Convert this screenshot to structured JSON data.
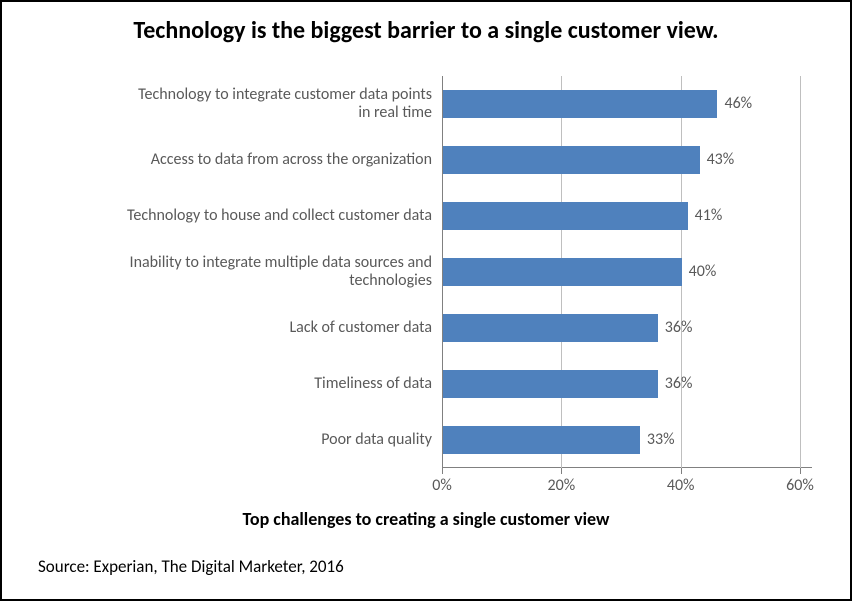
{
  "chart": {
    "type": "bar-horizontal",
    "title": "Technology is the biggest barrier to a single customer view.",
    "x_title": "Top challenges to creating a single customer view",
    "source": "Source: Experian, The Digital Marketer, 2016",
    "bar_color": "#4f81bd",
    "grid_color": "#bfbfbf",
    "axis_color": "#808080",
    "text_color": "#595959",
    "background": "#ffffff",
    "title_fontsize": 24,
    "label_fontsize": 16,
    "x_title_fontsize": 18,
    "xmin": 0,
    "xmax": 60,
    "xtick_step": 20,
    "ticks": [
      {
        "v": 0,
        "label": "0%"
      },
      {
        "v": 20,
        "label": "20%"
      },
      {
        "v": 40,
        "label": "40%"
      },
      {
        "v": 60,
        "label": "60%"
      }
    ],
    "items": [
      {
        "label": "Technology to integrate customer data points\nin real time",
        "value": 46,
        "value_label": "46%"
      },
      {
        "label": "Access to data from across the organization",
        "value": 43,
        "value_label": "43%"
      },
      {
        "label": "Technology to house and collect customer data",
        "value": 41,
        "value_label": "41%"
      },
      {
        "label": "Inability to integrate multiple data sources and\ntechnologies",
        "value": 40,
        "value_label": "40%"
      },
      {
        "label": "Lack of customer data",
        "value": 36,
        "value_label": "36%"
      },
      {
        "label": "Timeliness of data",
        "value": 36,
        "value_label": "36%"
      },
      {
        "label": "Poor data quality",
        "value": 33,
        "value_label": "33%"
      }
    ]
  }
}
